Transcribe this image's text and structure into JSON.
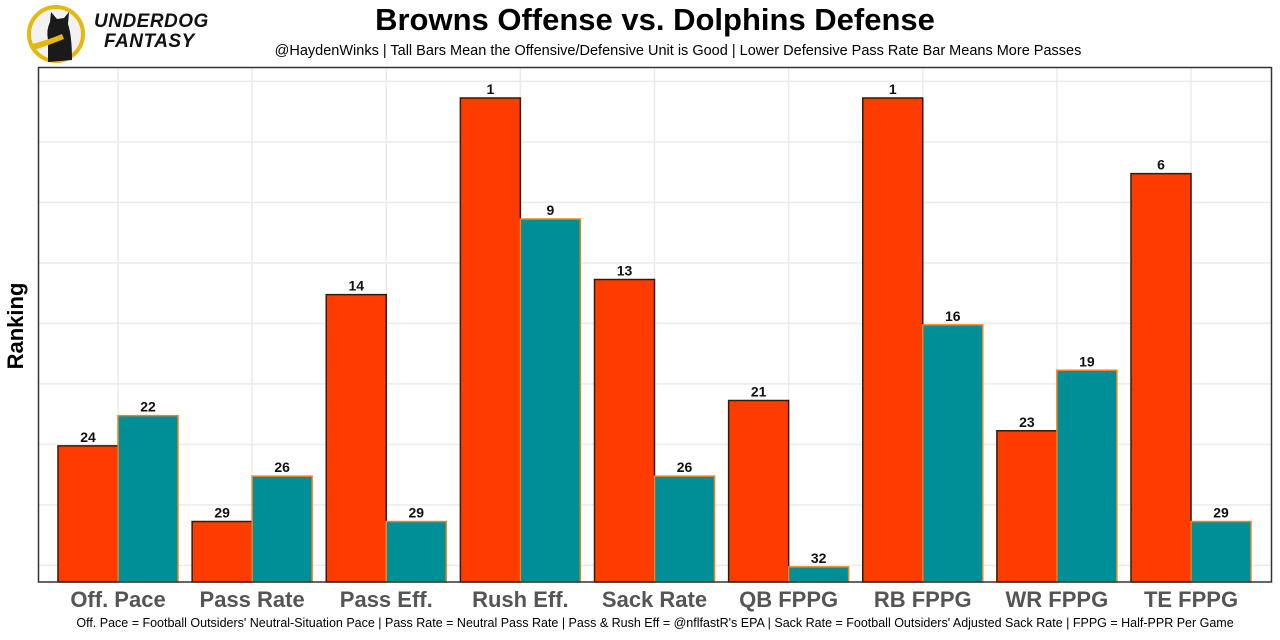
{
  "brand": {
    "line1": "UNDERDOG",
    "line2": "FANTASY",
    "logo_icon": "dog-silhouette-icon"
  },
  "colors": {
    "offense_fill": "#FF3C00",
    "offense_outline": "#311D00",
    "defense_fill": "#008E97",
    "defense_outline": "#F58220",
    "logo_ring": "#E5B80B"
  },
  "chart_data": {
    "type": "bar",
    "title": "Browns Offense vs. Dolphins Defense",
    "subtitle": "@HaydenWinks | Tall Bars Mean the Offensive/Defensive Unit is Good | Lower Defensive Pass Rate Bar Means More Passes",
    "xlabel": "",
    "ylabel": "Ranking",
    "caption": "Off. Pace = Football Outsiders' Neutral-Situation Pace | Pass Rate = Neutral Pass Rate | Pass & Rush Eff = @nflfastR's EPA | Sack Rate = Football Outsiders' Adjusted Sack Rate | FPPG = Half-PPR Per Game",
    "categories": [
      "Off. Pace",
      "Pass Rate",
      "Pass Eff.",
      "Rush Eff.",
      "Sack Rate",
      "QB FPPG",
      "RB FPPG",
      "WR FPPG",
      "TE FPPG"
    ],
    "series": [
      {
        "name": "Browns Offense",
        "ranks": [
          24,
          29,
          14,
          1,
          13,
          21,
          1,
          23,
          6
        ]
      },
      {
        "name": "Dolphins Defense",
        "ranks": [
          22,
          26,
          29,
          9,
          26,
          32,
          16,
          19,
          29
        ]
      }
    ],
    "bar_height_rule": "33 - rank",
    "ylim": [
      0,
      33
    ],
    "grid": true,
    "y_tick_labels_shown": false,
    "legend": "none"
  }
}
